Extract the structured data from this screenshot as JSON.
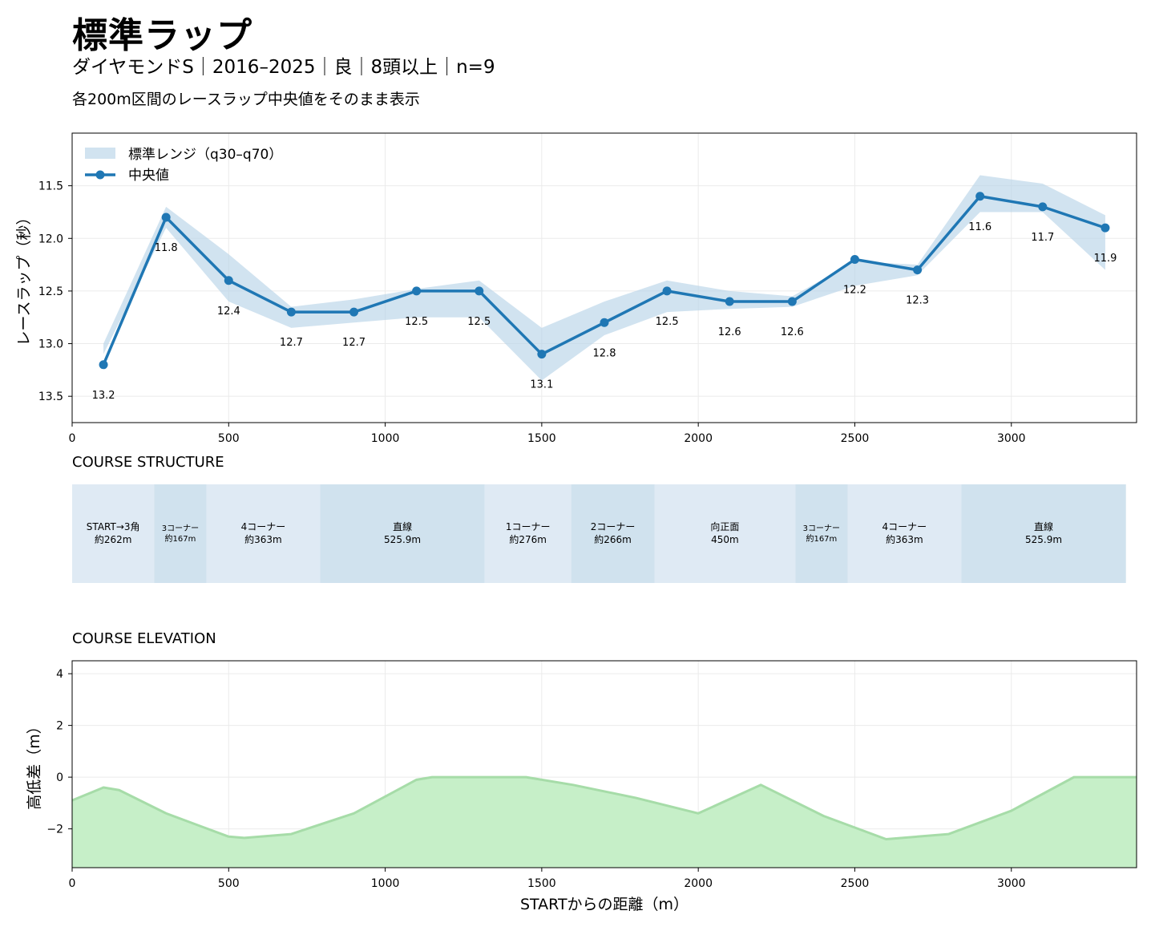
{
  "title": "標準ラップ",
  "subtitle": "ダイヤモンドS｜2016–2025｜良｜8頭以上｜n=9",
  "note": "各200m区間のレースラップ中央値をそのまま表示",
  "colors": {
    "median": "#1f77b4",
    "band": "#b9d4e8",
    "seg_light": "#dfeaf4",
    "seg_dark": "#d0e2ee",
    "elev_fill": "#c6efc8",
    "elev_line": "#a6dca8"
  },
  "chart_data": [
    {
      "type": "line",
      "ylabel": "レースラップ（秒）",
      "xlim": [
        0,
        3400
      ],
      "ylim": [
        13.75,
        11.0
      ],
      "y_inverted": true,
      "grid": true,
      "legend_position": "top-left",
      "legend": {
        "band": "標準レンジ（q30–q70）",
        "median": "中央値"
      },
      "x": [
        100,
        300,
        500,
        700,
        900,
        1100,
        1300,
        1500,
        1700,
        1900,
        2100,
        2300,
        2500,
        2700,
        2900,
        3100,
        3300
      ],
      "median": [
        13.2,
        11.8,
        12.4,
        12.7,
        12.7,
        12.5,
        12.5,
        13.1,
        12.8,
        12.5,
        12.6,
        12.6,
        12.2,
        12.3,
        11.6,
        11.7,
        11.9
      ],
      "labels": [
        "13.2",
        "11.8",
        "12.4",
        "12.7",
        "12.7",
        "12.5",
        "12.5",
        "13.1",
        "12.8",
        "12.5",
        "12.6",
        "12.6",
        "12.2",
        "12.3",
        "11.6",
        "11.7",
        "11.9"
      ],
      "q30": [
        13.0,
        11.7,
        12.15,
        12.65,
        12.58,
        12.48,
        12.4,
        12.85,
        12.6,
        12.4,
        12.5,
        12.55,
        12.22,
        12.25,
        11.4,
        11.48,
        11.78
      ],
      "q70": [
        13.1,
        11.9,
        12.6,
        12.85,
        12.8,
        12.75,
        12.75,
        13.35,
        12.92,
        12.7,
        12.67,
        12.65,
        12.45,
        12.35,
        11.75,
        11.75,
        12.3
      ],
      "x_ticks": [
        0,
        500,
        1000,
        1500,
        2000,
        2500,
        3000
      ],
      "x_tick_labels": [
        "0",
        "500",
        "1000",
        "1500",
        "2000",
        "2500",
        "3000"
      ],
      "y_ticks": [
        11.5,
        12.0,
        12.5,
        13.0,
        13.5
      ],
      "y_tick_labels": [
        "11.5",
        "12.0",
        "12.5",
        "13.0",
        "13.5"
      ]
    },
    {
      "type": "table",
      "title": "COURSE STRUCTURE",
      "segments": [
        {
          "start": 0,
          "end": 262,
          "line1": "START→3角",
          "line2": "約262m",
          "tone": "light",
          "small": false
        },
        {
          "start": 262,
          "end": 429,
          "line1": "3コーナー",
          "line2": "約167m",
          "tone": "dark",
          "small": true
        },
        {
          "start": 429,
          "end": 792,
          "line1": "4コーナー",
          "line2": "約363m",
          "tone": "light",
          "small": false
        },
        {
          "start": 792,
          "end": 1318,
          "line1": "直線",
          "line2": "525.9m",
          "tone": "dark",
          "small": false
        },
        {
          "start": 1318,
          "end": 1594,
          "line1": "1コーナー",
          "line2": "約276m",
          "tone": "light",
          "small": false
        },
        {
          "start": 1594,
          "end": 1860,
          "line1": "2コーナー",
          "line2": "約266m",
          "tone": "dark",
          "small": false
        },
        {
          "start": 1860,
          "end": 2310,
          "line1": "向正面",
          "line2": "450m",
          "tone": "light",
          "small": false
        },
        {
          "start": 2310,
          "end": 2477,
          "line1": "3コーナー",
          "line2": "約167m",
          "tone": "dark",
          "small": true
        },
        {
          "start": 2477,
          "end": 2840,
          "line1": "4コーナー",
          "line2": "約363m",
          "tone": "light",
          "small": false
        },
        {
          "start": 2840,
          "end": 3366,
          "line1": "直線",
          "line2": "525.9m",
          "tone": "dark",
          "small": false
        }
      ]
    },
    {
      "type": "area",
      "title": "COURSE ELEVATION",
      "xlabel": "STARTからの距離（m）",
      "ylabel": "高低差（m）",
      "xlim": [
        0,
        3400
      ],
      "ylim": [
        -3.5,
        4.5
      ],
      "grid": true,
      "x": [
        0,
        100,
        150,
        300,
        500,
        550,
        700,
        900,
        1100,
        1150,
        1450,
        1600,
        1800,
        2000,
        2200,
        2400,
        2600,
        2800,
        3000,
        3200,
        3400
      ],
      "y": [
        -0.9,
        -0.4,
        -0.5,
        -1.4,
        -2.3,
        -2.35,
        -2.2,
        -1.4,
        -0.1,
        0.0,
        0.0,
        -0.3,
        -0.8,
        -1.4,
        -0.3,
        -1.5,
        -2.4,
        -2.2,
        -1.3,
        0.0,
        0.0
      ],
      "x_ticks": [
        0,
        500,
        1000,
        1500,
        2000,
        2500,
        3000
      ],
      "x_tick_labels": [
        "0",
        "500",
        "1000",
        "1500",
        "2000",
        "2500",
        "3000"
      ],
      "y_ticks": [
        4,
        2,
        0,
        -2
      ],
      "y_tick_labels": [
        "4",
        "2",
        "0",
        "−2"
      ]
    }
  ]
}
